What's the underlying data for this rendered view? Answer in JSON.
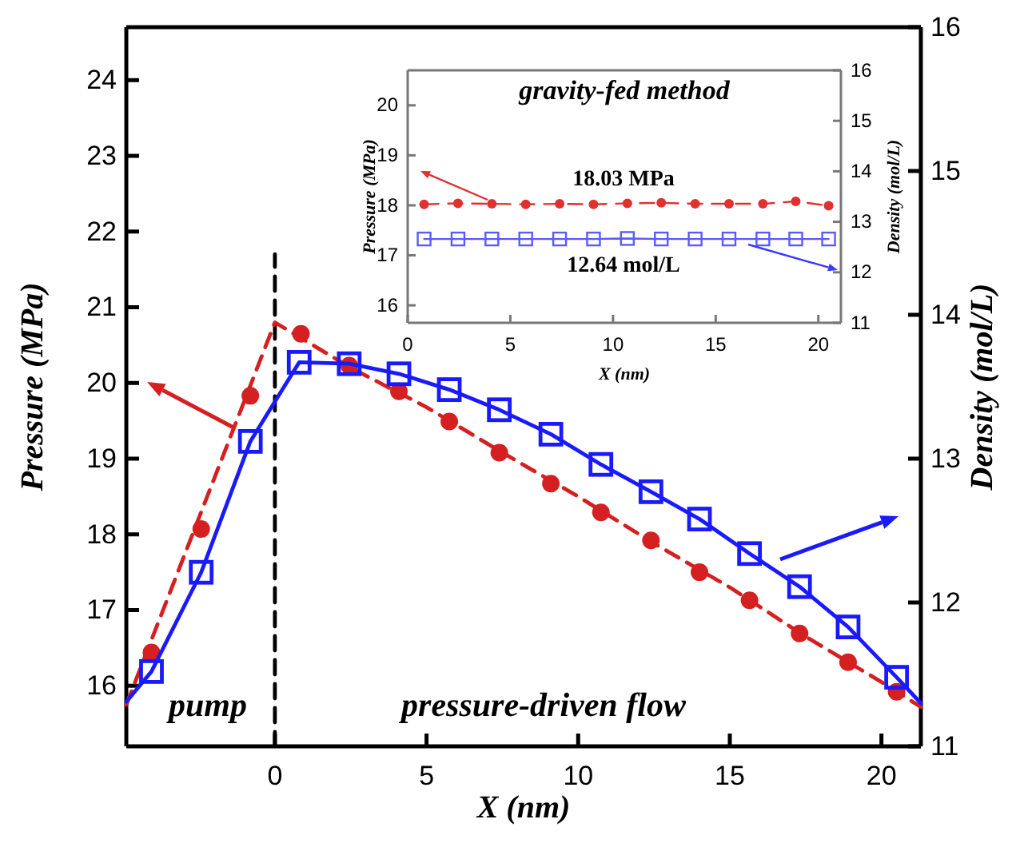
{
  "chart_data": [
    {
      "type": "line",
      "xlabel": "X (nm)",
      "ylabel": "Pressure (MPa)",
      "y2label": "Density (mol/L)",
      "xlim": [
        -4.9,
        21.3
      ],
      "ylim": [
        15.2,
        24.7
      ],
      "y2lim": [
        11,
        16
      ],
      "xticks": [
        0,
        5,
        10,
        15,
        20
      ],
      "yticks": [
        16,
        17,
        18,
        19,
        20,
        21,
        22,
        23,
        24
      ],
      "y2ticks": [
        11,
        12,
        13,
        14,
        15,
        16
      ],
      "annotations": [
        "pump",
        "pressure-driven flow"
      ],
      "series": [
        {
          "type": "line",
          "color": "#000000",
          "line_style": "dashed",
          "marker": "none",
          "x": [
            0,
            0
          ],
          "values": [
            15.2,
            21.7
          ]
        },
        {
          "type": "line",
          "color": "#d42020",
          "line_style": "dashed",
          "marker": "none",
          "x": [
            -4.9,
            0,
            2.5,
            5,
            7.5,
            10,
            12.5,
            15,
            17.5,
            20,
            21.3
          ],
          "values": [
            15.75,
            20.8,
            20.2,
            19.68,
            19.08,
            18.5,
            17.88,
            17.3,
            16.65,
            16.05,
            15.72
          ]
        },
        {
          "type": "scatter",
          "color": "#d42020",
          "marker": "circle",
          "x": [
            -4.07,
            -2.43,
            -0.81,
            0.86,
            2.45,
            4.09,
            5.75,
            7.4,
            9.1,
            10.75,
            12.4,
            14.0,
            15.65,
            17.3,
            18.9,
            20.5
          ],
          "values": [
            16.44,
            18.07,
            19.83,
            20.65,
            20.23,
            19.89,
            19.49,
            19.08,
            18.67,
            18.29,
            17.92,
            17.5,
            17.13,
            16.69,
            16.31,
            15.92
          ]
        },
        {
          "type": "line",
          "axis": "y2",
          "color": "#1a1aff",
          "line_style": "solid",
          "marker": "none",
          "x": [
            -4.9,
            -4.07,
            -2.43,
            -0.81,
            0.8,
            2.45,
            4.09,
            5.75,
            7.4,
            9.1,
            10.75,
            12.4,
            14.0,
            15.65,
            17.3,
            18.9,
            20.5,
            21.3
          ],
          "values": [
            11.31,
            11.52,
            12.21,
            13.12,
            13.67,
            13.66,
            13.59,
            13.48,
            13.34,
            13.17,
            12.96,
            12.77,
            12.58,
            12.34,
            12.11,
            11.83,
            11.48,
            11.3
          ]
        },
        {
          "type": "scatter",
          "axis": "y2",
          "color": "#1a1aff",
          "marker": "square",
          "x": [
            -4.07,
            -2.43,
            -0.81,
            0.8,
            2.45,
            4.09,
            5.75,
            7.4,
            9.1,
            10.75,
            12.4,
            14.0,
            15.65,
            17.3,
            18.9,
            20.5
          ],
          "values": [
            11.52,
            12.21,
            13.12,
            13.67,
            13.66,
            13.59,
            13.48,
            13.34,
            13.17,
            12.96,
            12.77,
            12.58,
            12.34,
            12.11,
            11.83,
            11.48
          ]
        }
      ]
    },
    {
      "type": "line",
      "title": "gravity-fed method",
      "xlabel": "X (nm)",
      "ylabel": "Pressure (MPa)",
      "y2label": "Density (mol/L)",
      "xlim": [
        0,
        21.1
      ],
      "ylim": [
        15.65,
        20.7
      ],
      "y2lim": [
        11,
        16
      ],
      "xticks": [
        0,
        5,
        10,
        15,
        20
      ],
      "yticks": [
        16,
        17,
        18,
        19,
        20
      ],
      "y2ticks": [
        11,
        12,
        13,
        14,
        15,
        16
      ],
      "annotations": [
        "18.03 MPa",
        "12.64 mol/L"
      ],
      "series": [
        {
          "type": "line",
          "color": "#e03030",
          "line_style": "dashed",
          "marker": "circle",
          "x": [
            0.8,
            2.45,
            4.1,
            5.75,
            7.4,
            9.05,
            10.7,
            12.35,
            14,
            15.65,
            17.3,
            18.9,
            20.5
          ],
          "values": [
            18.02,
            18.04,
            18.03,
            18.02,
            18.03,
            18.02,
            18.04,
            18.05,
            18.03,
            18.03,
            18.03,
            18.08,
            17.99
          ]
        },
        {
          "type": "line",
          "axis": "y2",
          "color": "#5a5aff",
          "line_style": "solid",
          "marker": "square",
          "x": [
            0.8,
            2.45,
            4.1,
            5.75,
            7.4,
            9.05,
            10.7,
            12.35,
            14,
            15.65,
            17.3,
            18.9,
            20.5
          ],
          "values": [
            12.66,
            12.66,
            12.66,
            12.66,
            12.66,
            12.66,
            12.67,
            12.66,
            12.66,
            12.66,
            12.66,
            12.66,
            12.66
          ]
        }
      ]
    }
  ]
}
